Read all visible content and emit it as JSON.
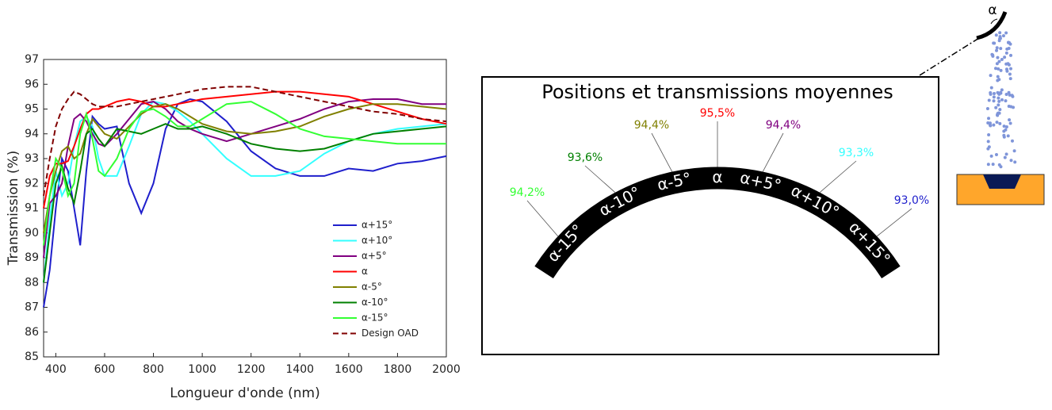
{
  "chart_data": {
    "type": "line",
    "x_label": "Longueur d'onde (nm)",
    "y_label": "Transmission (%)",
    "x": [
      350,
      375,
      400,
      425,
      450,
      475,
      500,
      525,
      550,
      575,
      600,
      650,
      700,
      750,
      800,
      850,
      900,
      950,
      1000,
      1100,
      1200,
      1300,
      1400,
      1500,
      1600,
      1700,
      1800,
      1900,
      2000
    ],
    "xlim": [
      350,
      2000
    ],
    "xticks": [
      400,
      600,
      800,
      1000,
      1200,
      1400,
      1600,
      1800,
      2000
    ],
    "ylim": [
      85,
      97
    ],
    "yticks": [
      85,
      86,
      87,
      88,
      89,
      90,
      91,
      92,
      93,
      94,
      95,
      96,
      97
    ],
    "legend": "lower right",
    "series": [
      {
        "name": "α+15°",
        "color": "#1f1fcc",
        "style": "solid",
        "values": [
          87.0,
          88.5,
          91,
          93,
          92.5,
          91,
          89.5,
          92.5,
          94.7,
          94.4,
          94.2,
          94.3,
          92.0,
          90.8,
          92,
          94.2,
          95.2,
          95.4,
          95.3,
          94.5,
          93.3,
          92.6,
          92.3,
          92.3,
          92.6,
          92.5,
          92.8,
          92.9,
          93.1
        ]
      },
      {
        "name": "α+10°",
        "color": "#33ffff",
        "style": "solid",
        "values": [
          88,
          90.5,
          92.5,
          91.5,
          92,
          93.5,
          94.5,
          94.7,
          94.3,
          93,
          92.3,
          92.3,
          93.5,
          94.8,
          95.3,
          95.2,
          94.9,
          94.5,
          94,
          93,
          92.3,
          92.3,
          92.5,
          93.2,
          93.7,
          94,
          94.2,
          94.3,
          94.4
        ]
      },
      {
        "name": "α+5°",
        "color": "#800080",
        "style": "solid",
        "values": [
          89,
          91.2,
          91.5,
          92,
          93.5,
          94.6,
          94.8,
          94.5,
          94,
          93.6,
          93.5,
          94,
          94.6,
          95.2,
          95.3,
          95,
          94.5,
          94.2,
          94,
          93.7,
          94,
          94.3,
          94.6,
          95,
          95.3,
          95.4,
          95.4,
          95.2,
          95.2
        ]
      },
      {
        "name": "α",
        "color": "#ff0000",
        "style": "solid",
        "values": [
          91,
          92.3,
          92.8,
          92.8,
          92.9,
          93.5,
          94.2,
          94.8,
          95,
          95,
          95.1,
          95.3,
          95.4,
          95.3,
          95.1,
          95.1,
          95.2,
          95.3,
          95.4,
          95.5,
          95.6,
          95.7,
          95.7,
          95.6,
          95.5,
          95.2,
          94.9,
          94.6,
          94.4
        ]
      },
      {
        "name": "α-5°",
        "color": "#808000",
        "style": "solid",
        "values": [
          90,
          91.5,
          92.5,
          93.3,
          93.5,
          93,
          93.2,
          94,
          94.6,
          94.3,
          94,
          93.8,
          94.3,
          94.8,
          95.1,
          95.2,
          95,
          94.7,
          94.4,
          94.1,
          94,
          94.1,
          94.3,
          94.7,
          95,
          95.2,
          95.2,
          95.1,
          95
        ]
      },
      {
        "name": "α-10°",
        "color": "#008000",
        "style": "solid",
        "values": [
          88,
          90,
          92,
          92.7,
          91.8,
          91.2,
          92.5,
          94,
          94.2,
          93.8,
          93.5,
          94.2,
          94.1,
          94,
          94.2,
          94.4,
          94.2,
          94.2,
          94.3,
          94,
          93.6,
          93.4,
          93.3,
          93.4,
          93.7,
          94,
          94.1,
          94.2,
          94.3
        ]
      },
      {
        "name": "α-15°",
        "color": "#33ff33",
        "style": "solid",
        "values": [
          89.5,
          91.5,
          93,
          92.6,
          91.5,
          92,
          94,
          94.8,
          93.8,
          92.5,
          92.3,
          93,
          94.2,
          94.9,
          95,
          94.7,
          94.3,
          94.3,
          94.6,
          95.2,
          95.3,
          94.8,
          94.2,
          93.9,
          93.8,
          93.7,
          93.6,
          93.6,
          93.6
        ]
      },
      {
        "name": "Design OAD",
        "color": "#800000",
        "style": "dashed",
        "values": [
          91.5,
          93,
          94.3,
          95,
          95.4,
          95.7,
          95.6,
          95.4,
          95.2,
          95.1,
          95.1,
          95.1,
          95.2,
          95.3,
          95.4,
          95.5,
          95.6,
          95.7,
          95.8,
          95.9,
          95.9,
          95.7,
          95.5,
          95.3,
          95.1,
          94.9,
          94.8,
          94.6,
          94.5
        ]
      }
    ]
  },
  "diagram": {
    "title": "Positions et transmissions moyennes",
    "positions": [
      {
        "label": "α-15°",
        "transmission": "94,2%",
        "color": "#33ff33"
      },
      {
        "label": "α-10°",
        "transmission": "93,6%",
        "color": "#008000"
      },
      {
        "label": "α-5°",
        "transmission": "94,4%",
        "color": "#808000"
      },
      {
        "label": "α",
        "transmission": "95,5%",
        "color": "#ff0000"
      },
      {
        "label": "α+5°",
        "transmission": "94,4%",
        "color": "#800080"
      },
      {
        "label": "α+10°",
        "transmission": "93,3%",
        "color": "#33ffff"
      },
      {
        "label": "α+15°",
        "transmission": "93,0%",
        "color": "#1f1fcc"
      }
    ],
    "angle_label": "α"
  }
}
